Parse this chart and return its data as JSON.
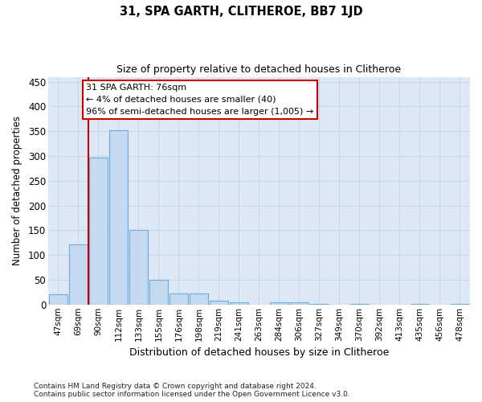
{
  "title1": "31, SPA GARTH, CLITHEROE, BB7 1JD",
  "title2": "Size of property relative to detached houses in Clitheroe",
  "xlabel": "Distribution of detached houses by size in Clitheroe",
  "ylabel": "Number of detached properties",
  "bar_labels": [
    "47sqm",
    "69sqm",
    "90sqm",
    "112sqm",
    "133sqm",
    "155sqm",
    "176sqm",
    "198sqm",
    "219sqm",
    "241sqm",
    "263sqm",
    "284sqm",
    "306sqm",
    "327sqm",
    "349sqm",
    "370sqm",
    "392sqm",
    "413sqm",
    "435sqm",
    "456sqm",
    "478sqm"
  ],
  "bar_values": [
    20,
    122,
    297,
    352,
    150,
    50,
    22,
    22,
    8,
    5,
    0,
    5,
    5,
    2,
    0,
    2,
    0,
    0,
    2,
    0,
    2
  ],
  "bar_color": "#c5d9f0",
  "bar_edge_color": "#6eaadc",
  "ylim": [
    0,
    460
  ],
  "yticks": [
    0,
    50,
    100,
    150,
    200,
    250,
    300,
    350,
    400,
    450
  ],
  "red_line_x": 1.5,
  "annotation_text_line1": "31 SPA GARTH: 76sqm",
  "annotation_text_line2": "← 4% of detached houses are smaller (40)",
  "annotation_text_line3": "96% of semi-detached houses are larger (1,005) →",
  "annotation_box_color": "#ffffff",
  "annotation_box_edge_color": "#cc0000",
  "red_line_color": "#cc0000",
  "grid_color": "#c8d8ec",
  "footer_text": "Contains HM Land Registry data © Crown copyright and database right 2024.\nContains public sector information licensed under the Open Government Licence v3.0.",
  "bg_color": "#ffffff",
  "plot_bg_color": "#dce8f5"
}
